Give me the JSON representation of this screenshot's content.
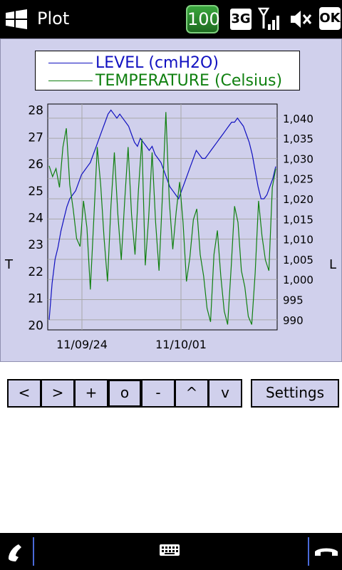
{
  "status_bar": {
    "title": "Plot",
    "battery": "100",
    "network": "3G",
    "ok_label": "OK"
  },
  "colors": {
    "level": "#1010c0",
    "temperature": "#108010",
    "panel": "#d0d0ec"
  },
  "legend": {
    "level": "LEVEL (cmH2O)",
    "temperature": "TEMPERATURE (Celsius)"
  },
  "axes": {
    "left_label": "T",
    "right_label": "L"
  },
  "chart_data": {
    "type": "line",
    "y_left": {
      "ticks": [
        "28",
        "27",
        "26",
        "25",
        "24",
        "23",
        "22",
        "21",
        "20"
      ],
      "range": [
        19.8,
        28.2
      ]
    },
    "y_right": {
      "ticks": [
        "1,040",
        "1,035",
        "1,030",
        "1,025",
        "1,020",
        "1,015",
        "1,010",
        "1,005",
        "1,000",
        "995",
        "990"
      ],
      "range": [
        987.5,
        1043.5
      ]
    },
    "x_ticks": [
      "11/09/24",
      "11/10/01"
    ],
    "series": [
      {
        "name": "LEVEL (cmH2O)",
        "axis": "right",
        "values": [
          990,
          999,
          1005,
          1008,
          1012,
          1015,
          1018,
          1020,
          1021,
          1022,
          1024,
          1026,
          1027,
          1028,
          1029,
          1031,
          1033,
          1035,
          1037,
          1039,
          1041,
          1042,
          1041,
          1040,
          1041,
          1040,
          1039,
          1038,
          1036,
          1034,
          1033,
          1035,
          1034,
          1033,
          1032,
          1033,
          1031,
          1030,
          1029,
          1027,
          1025,
          1023,
          1022,
          1021,
          1020,
          1022,
          1024,
          1026,
          1028,
          1030,
          1032,
          1031,
          1030,
          1030,
          1031,
          1032,
          1033,
          1034,
          1035,
          1036,
          1037,
          1038,
          1039,
          1039,
          1040,
          1039,
          1038,
          1036,
          1034,
          1031,
          1027,
          1023,
          1020,
          1020,
          1021,
          1023,
          1025,
          1028
        ]
      },
      {
        "name": "TEMPERATURE (Celsius)",
        "axis": "left",
        "values": [
          25.9,
          25.5,
          25.8,
          25.1,
          26.6,
          27.3,
          25.2,
          24.3,
          23.2,
          22.9,
          24.6,
          23.6,
          21.3,
          23.9,
          26.6,
          25.2,
          23.2,
          21.6,
          24.4,
          26.4,
          24.1,
          22.4,
          24.6,
          26.6,
          24.1,
          22.6,
          25.0,
          26.9,
          22.2,
          24.0,
          26.4,
          23.8,
          22.0,
          24.8,
          27.9,
          24.6,
          22.8,
          24.2,
          25.3,
          23.8,
          21.6,
          22.5,
          23.9,
          24.3,
          22.6,
          21.8,
          20.6,
          20.1,
          22.6,
          23.5,
          21.8,
          20.5,
          20.0,
          22.1,
          24.4,
          23.8,
          22.0,
          21.4,
          20.3,
          20.0,
          21.9,
          24.6,
          23.3,
          22.4,
          22.0,
          25.1,
          25.8
        ]
      }
    ]
  },
  "toolbar": {
    "buttons": [
      "<",
      ">",
      "+",
      "o",
      "-",
      "^",
      "v"
    ],
    "settings": "Settings"
  }
}
